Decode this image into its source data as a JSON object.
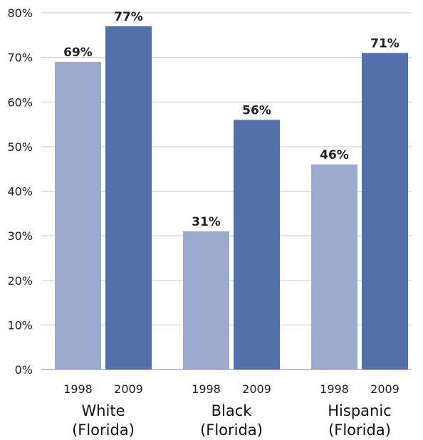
{
  "chart_data": {
    "type": "bar",
    "title": "",
    "xlabel": "",
    "ylabel": "",
    "ylim": [
      0,
      80
    ],
    "y_ticks": [
      0,
      10,
      20,
      30,
      40,
      50,
      60,
      70,
      80
    ],
    "y_tick_labels": [
      "0%",
      "10%",
      "20%",
      "30%",
      "40%",
      "50%",
      "60%",
      "70%",
      "80%"
    ],
    "grid": true,
    "legend": "none",
    "groups": [
      {
        "label_line1": "White",
        "label_line2": "(Florida)",
        "bars": [
          {
            "year": "1998",
            "value": 69,
            "label": "69%"
          },
          {
            "year": "2009",
            "value": 77,
            "label": "77%"
          }
        ]
      },
      {
        "label_line1": "Black",
        "label_line2": "(Florida)",
        "bars": [
          {
            "year": "1998",
            "value": 31,
            "label": "31%"
          },
          {
            "year": "2009",
            "value": 56,
            "label": "56%"
          }
        ]
      },
      {
        "label_line1": "Hispanic",
        "label_line2": "(Florida)",
        "bars": [
          {
            "year": "1998",
            "value": 46,
            "label": "46%"
          },
          {
            "year": "2009",
            "value": 71,
            "label": "71%"
          }
        ]
      }
    ],
    "series_colors": {
      "1998": "#9BABCE",
      "2009": "#5270A9"
    },
    "grid_color": "#C9C9C9",
    "axis_color": "#888888"
  }
}
